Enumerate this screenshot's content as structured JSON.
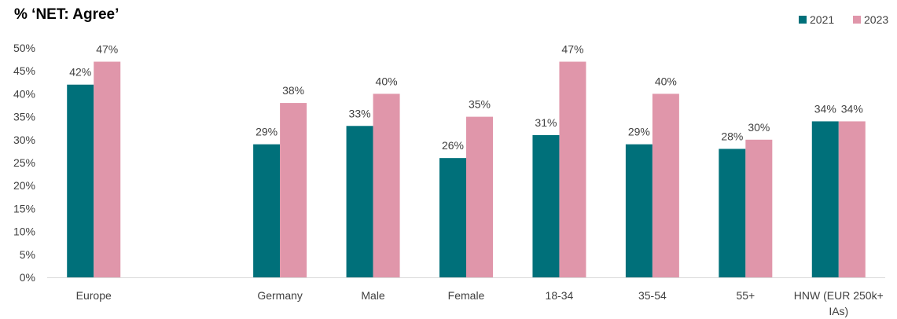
{
  "chart_data": {
    "type": "bar",
    "title": "% ‘NET: Agree’",
    "categories": [
      "Europe",
      "",
      "Germany",
      "Male",
      "Female",
      "18-34",
      "35-54",
      "55+",
      "HNW (EUR 250k+ IAs)"
    ],
    "category_lines": [
      [
        "Europe"
      ],
      [],
      [
        "Germany"
      ],
      [
        "Male"
      ],
      [
        "Female"
      ],
      [
        "18-34"
      ],
      [
        "35-54"
      ],
      [
        "55+"
      ],
      [
        "HNW (EUR 250k+",
        "IAs)"
      ]
    ],
    "series": [
      {
        "name": "2021",
        "color": "#00707A",
        "values": [
          42,
          null,
          29,
          33,
          26,
          31,
          29,
          28,
          34
        ]
      },
      {
        "name": "2023",
        "color": "#E096AA",
        "values": [
          47,
          null,
          38,
          40,
          35,
          47,
          40,
          30,
          34
        ]
      }
    ],
    "data_labels": [
      [
        "42%",
        "",
        "29%",
        "33%",
        "26%",
        "31%",
        "29%",
        "28%",
        "34%"
      ],
      [
        "47%",
        "",
        "38%",
        "40%",
        "35%",
        "47%",
        "40%",
        "30%",
        "34%"
      ]
    ],
    "yticks": [
      0,
      5,
      10,
      15,
      20,
      25,
      30,
      35,
      40,
      45,
      50
    ],
    "ytick_labels": [
      "0%",
      "5%",
      "10%",
      "15%",
      "20%",
      "25%",
      "30%",
      "35%",
      "40%",
      "45%",
      "50%"
    ],
    "ylim": [
      0,
      50
    ],
    "xlabel": "",
    "ylabel": "",
    "grid": false,
    "legend_position": "top-right"
  }
}
